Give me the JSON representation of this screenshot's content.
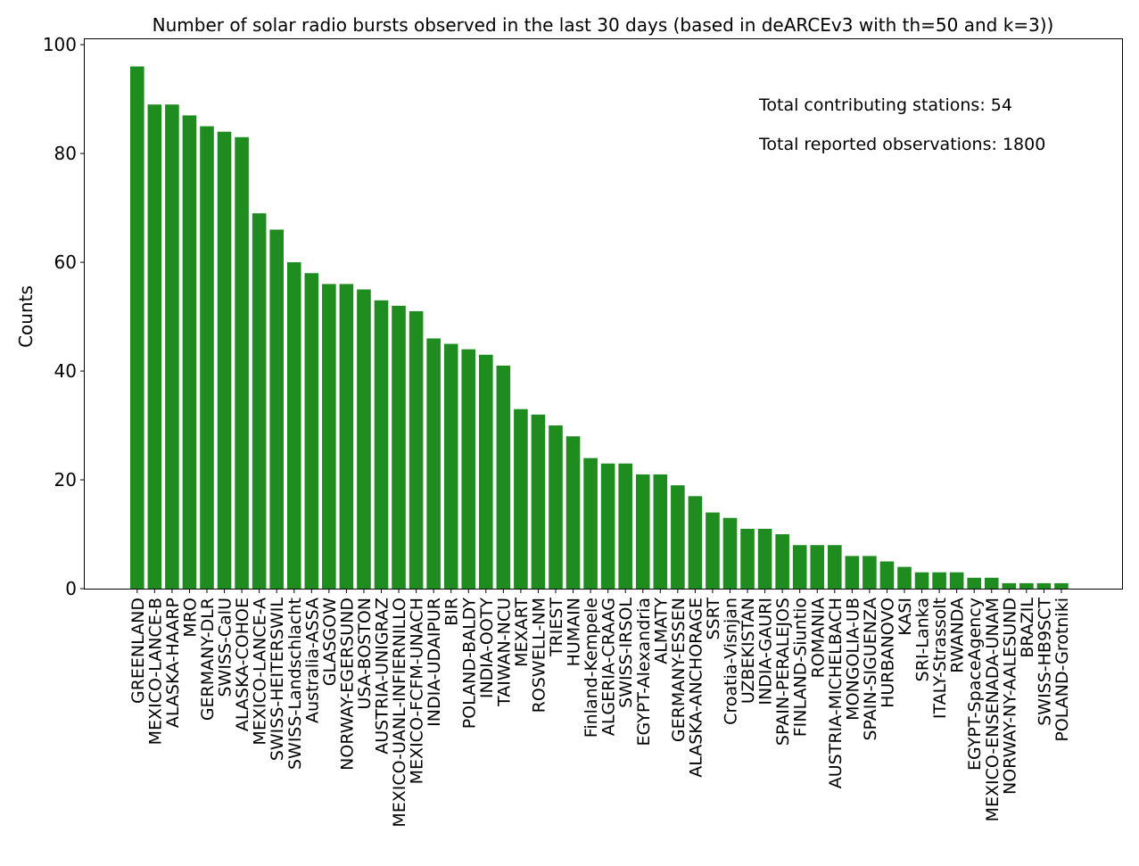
{
  "chart_data": {
    "type": "bar",
    "title": "Number of solar radio bursts observed in the last 30 days (based in deARCEv3 with th=50 and k=3))",
    "xlabel": "",
    "ylabel": "Counts",
    "ylim": [
      0,
      101
    ],
    "yticks": [
      "0",
      "20",
      "40",
      "60",
      "80",
      "100"
    ],
    "grid": false,
    "bar_color": "#1e8c1e",
    "categories": [
      "GREENLAND",
      "MEXICO-LANCE-B",
      "ALASKA-HAARP",
      "MRO",
      "GERMANY-DLR",
      "SWISS-CalU",
      "ALASKA-COHOE",
      "MEXICO-LANCE-A",
      "SWISS-HEITERSWIL",
      "SWISS-Landschlacht",
      "Australia-ASSA",
      "GLASGOW",
      "NORWAY-EGERSUND",
      "USA-BOSTON",
      "AUSTRIA-UNIGRAZ",
      "MEXICO-UANL-INFIERNILLO",
      "MEXICO-FCFM-UNACH",
      "INDIA-UDAIPUR",
      "BIR",
      "POLAND-BALDY",
      "INDIA-OOTY",
      "TAIWAN-NCU",
      "MEXART",
      "ROSWELL-NM",
      "TRIEST",
      "HUMAIN",
      "Finland-Kempele",
      "ALGERIA-CRAAG",
      "SWISS-IRSOL",
      "EGYPT-Alexandria",
      "ALMATY",
      "GERMANY-ESSEN",
      "ALASKA-ANCHORAGE",
      "SSRT",
      "Croatia-Visnjan",
      "UZBEKISTAN",
      "INDIA-GAURI",
      "SPAIN-PERALEJOS",
      "FINLAND-Siuntio",
      "ROMANIA",
      "AUSTRIA-MICHELBACH",
      "MONGOLIA-UB",
      "SPAIN-SIGUENZA",
      "HURBANOVO",
      "KASI",
      "SRI-Lanka",
      "ITALY-Strassolt",
      "RWANDA",
      "EGYPT-SpaceAgency",
      "MEXICO-ENSENADA-UNAM",
      "NORWAY-NY-AALESUND",
      "BRAZIL",
      "SWISS-HB9SCT",
      "POLAND-Grotniki"
    ],
    "values": [
      96,
      89,
      89,
      87,
      85,
      84,
      83,
      69,
      66,
      60,
      58,
      56,
      56,
      55,
      53,
      52,
      51,
      46,
      45,
      44,
      43,
      41,
      33,
      32,
      30,
      28,
      24,
      23,
      23,
      21,
      21,
      19,
      17,
      14,
      13,
      11,
      11,
      10,
      8,
      8,
      8,
      6,
      6,
      5,
      4,
      3,
      3,
      3,
      2,
      2,
      1,
      1,
      1,
      1
    ],
    "annotations": [
      "Total contributing stations: 54",
      "Total reported observations: 1800"
    ]
  }
}
